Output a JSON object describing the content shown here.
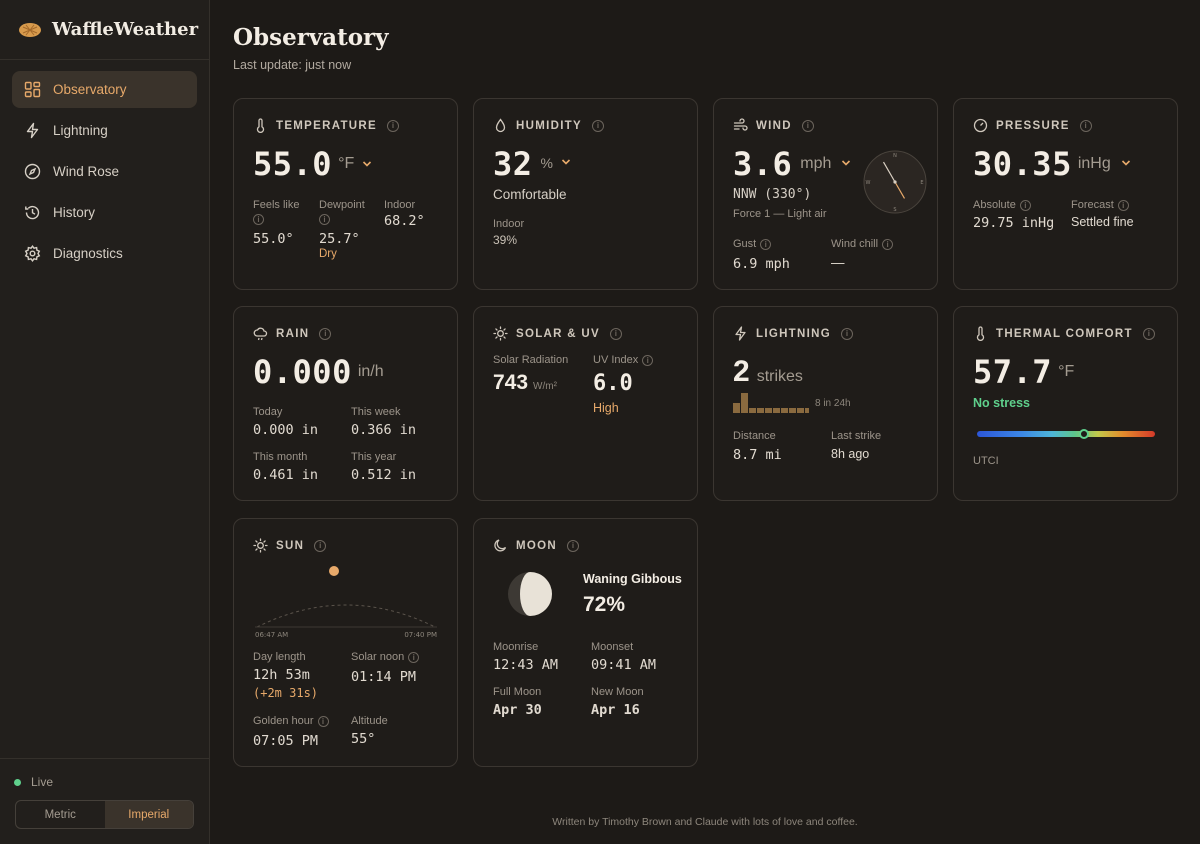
{
  "app": {
    "name": "WaffleWeather"
  },
  "nav": [
    {
      "label": "Observatory",
      "icon": "grid-icon",
      "active": true
    },
    {
      "label": "Lightning",
      "icon": "bolt-icon"
    },
    {
      "label": "Wind Rose",
      "icon": "compass-icon"
    },
    {
      "label": "History",
      "icon": "history-icon"
    },
    {
      "label": "Diagnostics",
      "icon": "gear-icon"
    }
  ],
  "status": {
    "live": "Live"
  },
  "units": {
    "metric": "Metric",
    "imperial": "Imperial",
    "selected": "Imperial"
  },
  "page": {
    "title": "Observatory",
    "subtitle": "Last update: just now"
  },
  "temperature": {
    "title": "TEMPERATURE",
    "value": "55.0",
    "unit": "°F",
    "feels_label": "Feels like",
    "feels": "55.0°",
    "dew_label": "Dewpoint",
    "dew": "25.7°",
    "dew_note": "Dry",
    "indoor_label": "Indoor",
    "indoor": "68.2°"
  },
  "humidity": {
    "title": "HUMIDITY",
    "value": "32",
    "unit": "%",
    "note": "Comfortable",
    "indoor_label": "Indoor",
    "indoor": "39%"
  },
  "wind": {
    "title": "WIND",
    "value": "3.6",
    "unit": "mph",
    "direction": "NNW (330°)",
    "force": "Force 1 — Light air",
    "gust_label": "Gust",
    "gust": "6.9 mph",
    "chill_label": "Wind chill",
    "chill": "—",
    "heading_deg": 330,
    "compass": {
      "n": "N",
      "e": "E",
      "s": "S",
      "w": "W"
    }
  },
  "pressure": {
    "title": "PRESSURE",
    "value": "30.35",
    "unit": "inHg",
    "abs_label": "Absolute",
    "abs": "29.75 inHg",
    "forecast_label": "Forecast",
    "forecast": "Settled fine"
  },
  "rain": {
    "title": "RAIN",
    "value": "0.000",
    "unit": "in/h",
    "today_label": "Today",
    "today": "0.000 in",
    "week_label": "This week",
    "week": "0.366 in",
    "month_label": "This month",
    "month": "0.461 in",
    "year_label": "This year",
    "year": "0.512 in"
  },
  "solar": {
    "title": "SOLAR & UV",
    "rad_label": "Solar Radiation",
    "rad": "743",
    "rad_unit": "W/m²",
    "uv_label": "UV Index",
    "uv": "6.0",
    "uv_note": "High"
  },
  "lightning": {
    "title": "LIGHTNING",
    "count": "2",
    "count_unit": "strikes",
    "spark_note": "8 in 24h",
    "histogram": [
      2,
      4,
      1,
      1,
      1,
      1,
      1,
      1,
      1,
      1
    ],
    "dist_label": "Distance",
    "dist": "8.7 mi",
    "last_label": "Last strike",
    "last": "8h ago"
  },
  "thermal": {
    "title": "THERMAL COMFORT",
    "value": "57.7",
    "unit": "°F",
    "note": "No stress",
    "index_label": "UTCI",
    "position": 0.6
  },
  "sun": {
    "title": "SUN",
    "sunrise": "06:47 AM",
    "sunset": "07:40 PM",
    "day_label": "Day length",
    "day": "12h 53m",
    "day_delta": "(+2m 31s)",
    "noon_label": "Solar noon",
    "noon": "01:14 PM",
    "golden_label": "Golden hour",
    "golden": "07:05 PM",
    "alt_label": "Altitude",
    "alt": "55°"
  },
  "moon": {
    "title": "MOON",
    "phase": "Waning Gibbous",
    "illum": "72%",
    "rise_label": "Moonrise",
    "rise": "12:43 AM",
    "set_label": "Moonset",
    "set": "09:41 AM",
    "full_label": "Full Moon",
    "full": "Apr 30",
    "new_label": "New Moon",
    "new": "Apr 16"
  },
  "colors": {
    "accent": "#e7a96a",
    "good": "#5fd08c"
  },
  "footer": "Written by Timothy Brown and Claude with lots of love and coffee."
}
